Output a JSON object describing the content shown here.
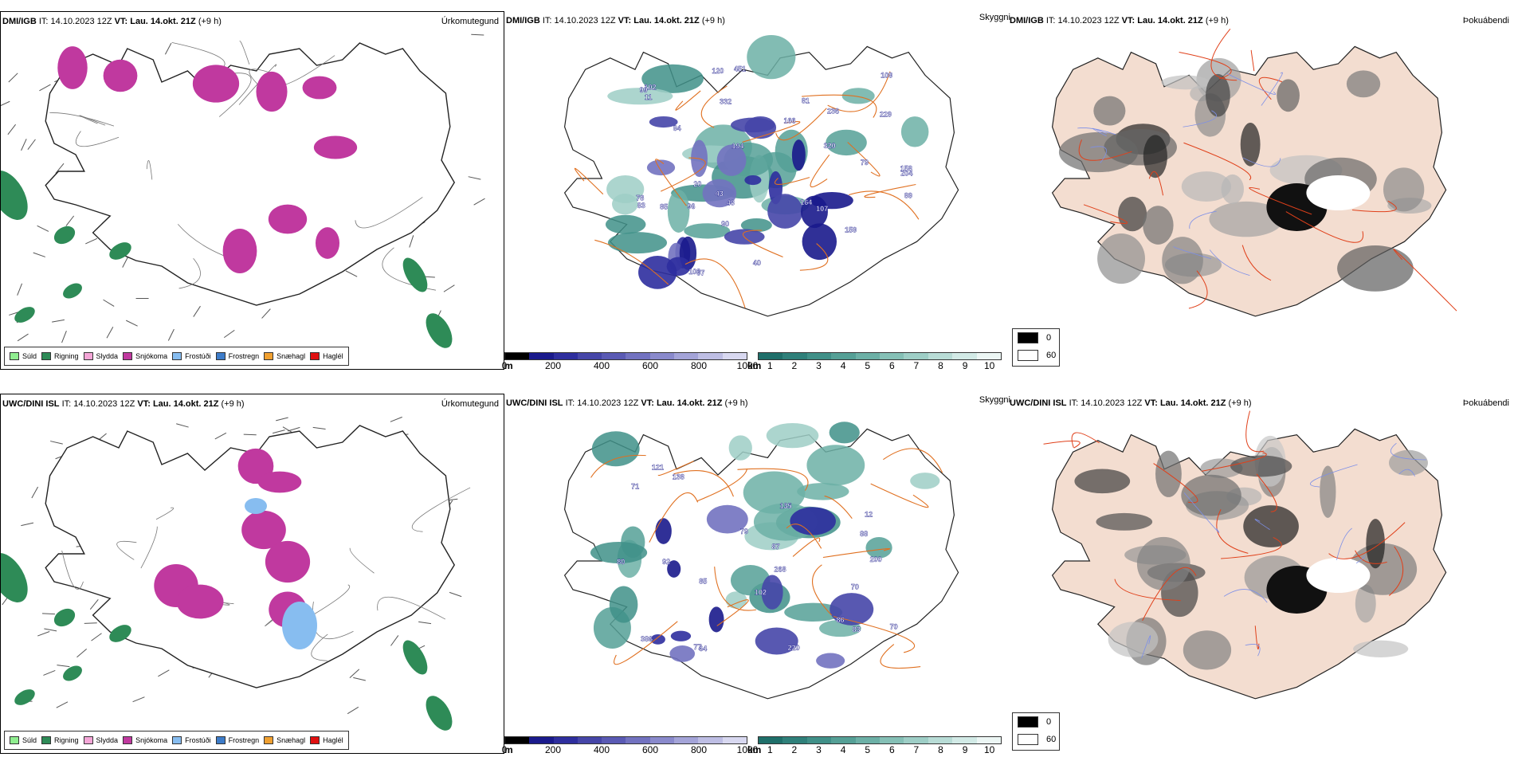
{
  "panels": [
    {
      "model": "DMI/IGB",
      "it_label": "IT:",
      "it": "14.10.2023 12Z",
      "vt_label": "VT:",
      "vt": "Lau. 14.okt. 21Z",
      "lead": "(+9 h)",
      "title": "Úrkomutegund"
    },
    {
      "model": "DMI/IGB",
      "it_label": "IT:",
      "it": "14.10.2023 12Z",
      "vt_label": "VT:",
      "vt": "Lau. 14.okt. 21Z",
      "lead": "(+9 h)",
      "title": "Skyggni"
    },
    {
      "model": "DMI/IGB",
      "it_label": "IT:",
      "it": "14.10.2023 12Z",
      "vt_label": "VT:",
      "vt": "Lau. 14.okt. 21Z",
      "lead": "(+9 h)",
      "title": "Þokuábendi"
    },
    {
      "model": "UWC/DINI ISL",
      "it_label": "IT:",
      "it": "14.10.2023 12Z",
      "vt_label": "VT:",
      "vt": "Lau. 14.okt. 21Z",
      "lead": "(+9 h)",
      "title": "Úrkomutegund"
    },
    {
      "model": "UWC/DINI ISL",
      "it_label": "IT:",
      "it": "14.10.2023 12Z",
      "vt_label": "VT:",
      "vt": "Lau. 14.okt. 21Z",
      "lead": "(+9 h)",
      "title": "Skyggni"
    },
    {
      "model": "UWC/DINI ISL",
      "it_label": "IT:",
      "it": "14.10.2023 12Z",
      "vt_label": "VT:",
      "vt": "Lau. 14.okt. 21Z",
      "lead": "(+9 h)",
      "title": "Þokuábendi"
    }
  ],
  "precip_legend": [
    {
      "label": "Súld",
      "color": "#90ee90"
    },
    {
      "label": "Rigning",
      "color": "#2e8b57"
    },
    {
      "label": "Slydda",
      "color": "#f4a6d7"
    },
    {
      "label": "Snjókoma",
      "color": "#c0399f"
    },
    {
      "label": "Frostúði",
      "color": "#87bdf0"
    },
    {
      "label": "Frostregn",
      "color": "#3d7cc9"
    },
    {
      "label": "Snæhagl",
      "color": "#f0a030"
    },
    {
      "label": "Haglél",
      "color": "#e01010"
    }
  ],
  "visibility_m": {
    "unit": "m",
    "ticks": [
      "0",
      "200",
      "400",
      "600",
      "800",
      "1000"
    ],
    "colors": [
      "#000000",
      "#1a1a8c",
      "#2e2e9e",
      "#4646a8",
      "#5a5ab4",
      "#7272c0",
      "#8a8acc",
      "#a4a4d8",
      "#bebee4",
      "#d8d8f0"
    ]
  },
  "visibility_km": {
    "unit": "km",
    "ticks": [
      "1",
      "2",
      "3",
      "4",
      "5",
      "6",
      "7",
      "8",
      "9",
      "10"
    ],
    "colors": [
      "#1f6f6a",
      "#2f807a",
      "#409088",
      "#55a096",
      "#6cb0a6",
      "#85c0b6",
      "#9ecec6",
      "#b8dcd6",
      "#d2eae6",
      "#ecf6f4"
    ]
  },
  "fog_legend": [
    {
      "value": "0",
      "color": "#000000"
    },
    {
      "value": "60",
      "color": "#ffffff"
    }
  ],
  "vis_labels_top": [
    "89",
    "40",
    "48",
    "90",
    "96",
    "85",
    "97",
    "43",
    "107",
    "83",
    "102",
    "120",
    "99",
    "79",
    "451",
    "164",
    "109",
    "103",
    "78",
    "81",
    "84",
    "320",
    "332",
    "166",
    "229",
    "194",
    "236",
    "204",
    "11",
    "158",
    "20",
    "159"
  ],
  "vis_labels_bottom": [
    "64",
    "92",
    "70",
    "85",
    "77",
    "88",
    "70",
    "102",
    "386",
    "220",
    "121",
    "200",
    "135",
    "87",
    "268",
    "138",
    "71",
    "79",
    "83",
    "80",
    "12",
    "86"
  ],
  "colors": {
    "coast": "#222222",
    "roads_orange": "#e07020",
    "roads_red": "#e0401a",
    "land_fog": "#f3ddd0",
    "rivers": "#7d8fe8",
    "precip_rain": "#2e8b57",
    "precip_snow": "#c0399f",
    "wind": "#555555"
  }
}
